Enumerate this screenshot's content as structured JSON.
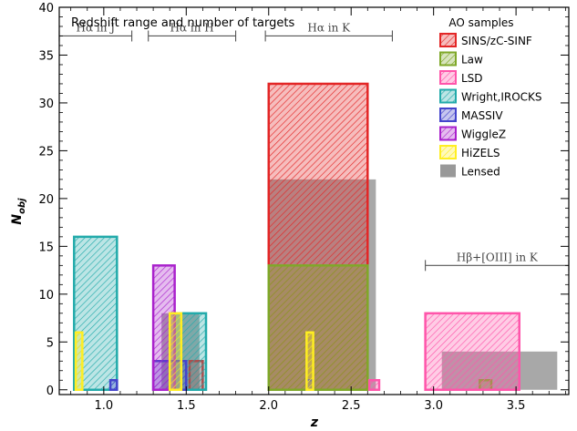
{
  "chart_data": {
    "type": "bar",
    "title": "Redshift range and number of targets",
    "xlabel": "z",
    "ylabel_main": "N",
    "ylabel_sub": "obj",
    "xlim": [
      0.73,
      3.82
    ],
    "ylim": [
      -0.5,
      40
    ],
    "xticks": [
      1.0,
      1.5,
      2.0,
      2.5,
      3.0,
      3.5
    ],
    "xtick_labels": [
      "1.0",
      "1.5",
      "2.0",
      "2.5",
      "3.0",
      "3.5"
    ],
    "yticks": [
      0,
      5,
      10,
      15,
      20,
      25,
      30,
      35,
      40
    ],
    "ytick_labels": [
      "0",
      "5",
      "10",
      "15",
      "20",
      "25",
      "30",
      "35",
      "40"
    ],
    "legend_title": "AO samples",
    "legend_position": "top-right",
    "series": [
      {
        "name": "Lensed",
        "key": "lensed",
        "color": "#999999",
        "fill": "solid",
        "bars": [
          {
            "x0": 1.35,
            "x1": 1.58,
            "y": 8
          },
          {
            "x0": 2.0,
            "x1": 2.65,
            "y": 22
          },
          {
            "x0": 3.05,
            "x1": 3.75,
            "y": 4
          }
        ]
      },
      {
        "name": "SINS/zC-SINF",
        "key": "sins",
        "color": "#e32626",
        "fill": "hatch",
        "bars": [
          {
            "x0": 2.0,
            "x1": 2.6,
            "y": 32
          },
          {
            "x0": 1.52,
            "x1": 1.6,
            "y": 3
          }
        ]
      },
      {
        "name": "Law",
        "key": "law",
        "color": "#7fa829",
        "fill": "hatch",
        "bars": [
          {
            "x0": 2.0,
            "x1": 2.6,
            "y": 13
          },
          {
            "x0": 3.28,
            "x1": 3.35,
            "y": 1
          }
        ]
      },
      {
        "name": "LSD",
        "key": "lsd",
        "color": "#ff55aa",
        "fill": "hatch",
        "bars": [
          {
            "x0": 2.95,
            "x1": 3.52,
            "y": 8
          },
          {
            "x0": 2.61,
            "x1": 2.67,
            "y": 1
          }
        ]
      },
      {
        "name": "Wright,IROCKS",
        "key": "wright",
        "color": "#22aaaa",
        "fill": "hatch",
        "bars": [
          {
            "x0": 0.82,
            "x1": 1.08,
            "y": 16
          },
          {
            "x0": 1.43,
            "x1": 1.62,
            "y": 8
          }
        ]
      },
      {
        "name": "MASSIV",
        "key": "massiv",
        "color": "#4444cc",
        "fill": "hatch",
        "bars": [
          {
            "x0": 1.3,
            "x1": 1.5,
            "y": 3
          },
          {
            "x0": 1.04,
            "x1": 1.08,
            "y": 1
          },
          {
            "x0": 2.23,
            "x1": 2.27,
            "y": 1
          }
        ]
      },
      {
        "name": "WiggleZ",
        "key": "wigglez",
        "color": "#aa22cc",
        "fill": "hatch",
        "bars": [
          {
            "x0": 1.3,
            "x1": 1.43,
            "y": 13
          }
        ]
      },
      {
        "name": "HiZELS",
        "key": "hizels",
        "color": "#ffee22",
        "fill": "hatch",
        "bars": [
          {
            "x0": 0.83,
            "x1": 0.87,
            "y": 6
          },
          {
            "x0": 1.4,
            "x1": 1.47,
            "y": 8
          },
          {
            "x0": 2.23,
            "x1": 2.27,
            "y": 6
          }
        ]
      }
    ],
    "annotations": [
      {
        "label": "Hα in J",
        "x0": 0.73,
        "x1": 1.17,
        "y": 37
      },
      {
        "label": "Hα in H",
        "x0": 1.27,
        "x1": 1.8,
        "y": 37
      },
      {
        "label": "Hα in K",
        "x0": 1.98,
        "x1": 2.75,
        "y": 37
      },
      {
        "label": "Hβ+[OIII] in K",
        "x0": 2.95,
        "x1": 3.82,
        "y": 13
      }
    ]
  }
}
